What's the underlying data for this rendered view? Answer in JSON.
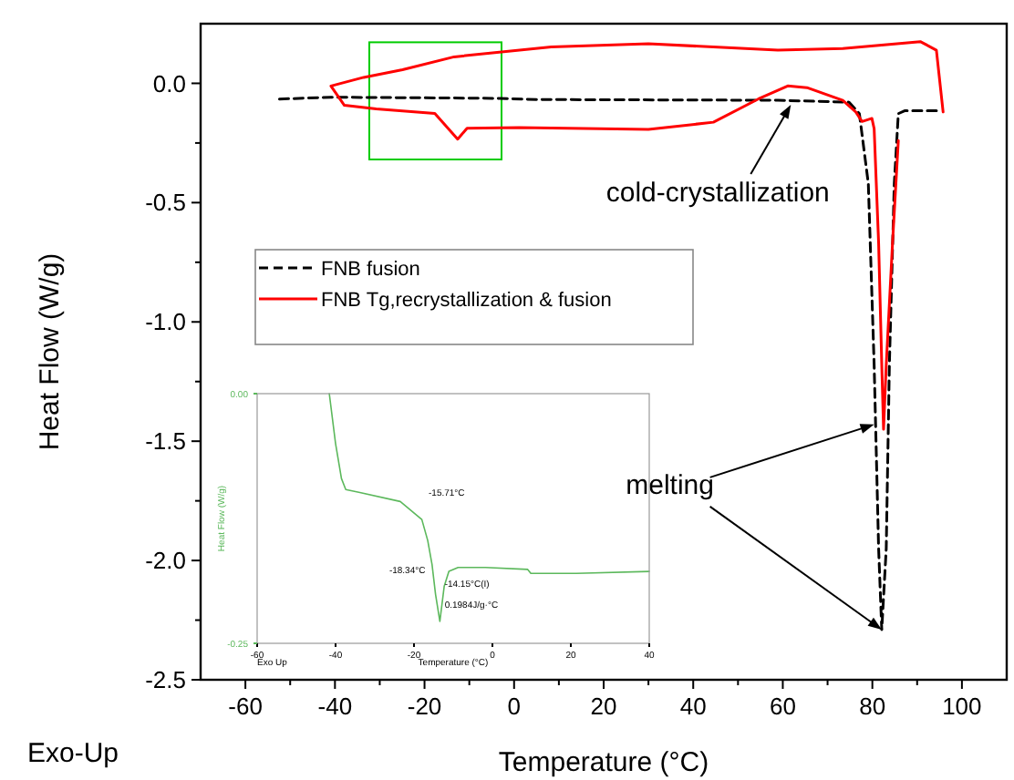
{
  "chart_data": [
    {
      "type": "line",
      "xlabel": "Temperature (°C)",
      "ylabel": "Heat Flow (W/g)",
      "xlim": [
        -70,
        110
      ],
      "ylim": [
        -2.5,
        0.25
      ],
      "xticks": [
        -60,
        {
          "value": -50,
          "label": null
        },
        -40,
        {
          "value": -30,
          "label": null
        },
        -20,
        {
          "value": -10,
          "label": null
        },
        0,
        {
          "value": 10,
          "label": null
        },
        20,
        {
          "value": 30,
          "label": null
        },
        40,
        {
          "value": 50,
          "label": null
        },
        60,
        {
          "value": 70,
          "label": null
        },
        80,
        {
          "value": 90,
          "label": null
        },
        100
      ],
      "yticks": [
        {
          "value": -2.5,
          "label": "-2.5"
        },
        {
          "value": -2.25,
          "label": null
        },
        {
          "value": -2,
          "label": "-2.0"
        },
        {
          "value": -1.75,
          "label": null
        },
        {
          "value": -1.5,
          "label": "-1.5"
        },
        {
          "value": -1.25,
          "label": null
        },
        {
          "value": -1,
          "label": "-1.0"
        },
        {
          "value": -0.75,
          "label": null
        },
        {
          "value": -0.5,
          "label": "-0.5"
        },
        {
          "value": -0.25,
          "label": null
        },
        {
          "value": 0,
          "label": "0.0"
        }
      ],
      "grid": false,
      "legend": "left",
      "series": [
        {
          "name": "FNB fusion",
          "color": "#000000",
          "line_style": "dashed",
          "x": [
            -52.4,
            -40.9,
            -3.2,
            5.4,
            58.9,
            74.8,
            77.1,
            79.1,
            80.4,
            81.4,
            82.1,
            83.1,
            83.8,
            84.9,
            85.8,
            87.2,
            94.6
          ],
          "values": [
            -0.066,
            -0.058,
            -0.063,
            -0.068,
            -0.071,
            -0.079,
            -0.127,
            -0.42,
            -1.18,
            -1.95,
            -2.29,
            -1.95,
            -1.18,
            -0.42,
            -0.127,
            -0.115,
            -0.115
          ]
        },
        {
          "name": "FNB  Tg,recrystallization & fusion",
          "color": "#ff0000",
          "line_style": "solid",
          "x": [
            95.8,
            94.3,
            90.7,
            73.4,
            58.9,
            30,
            8.3,
            -13.4,
            -24.9,
            -33.6,
            -40.9,
            -37.9,
            -30.8,
            -17.7,
            -12.6,
            -10.5,
            1.1,
            30,
            44.5,
            54.6,
            61.1,
            65.4,
            73.4,
            76.3,
            77.7,
            79.9,
            80.4,
            81.4,
            82.1,
            82.5,
            83.1,
            84.5,
            85.8
          ],
          "values": [
            -0.12,
            0.139,
            0.175,
            0.146,
            0.139,
            0.166,
            0.153,
            0.111,
            0.057,
            0.025,
            -0.011,
            -0.092,
            -0.107,
            -0.126,
            -0.234,
            -0.188,
            -0.185,
            -0.193,
            -0.163,
            -0.065,
            -0.011,
            -0.018,
            -0.071,
            -0.12,
            -0.16,
            -0.147,
            -0.19,
            -0.67,
            -1.18,
            -1.45,
            -1.18,
            -0.67,
            -0.24
          ]
        }
      ],
      "annotations": [
        {
          "text": "cold-crystallization",
          "x": 61.8,
          "y": -0.09
        },
        {
          "text": "melting",
          "x": 80.4,
          "y": -1.43
        },
        "Exo-Up"
      ]
    },
    {
      "type": "line",
      "xlabel": "Temperature (°C)",
      "ylabel": "Heat Flow (W/g)",
      "xlim": [
        -60,
        40
      ],
      "ylim": [
        -0.25,
        0
      ],
      "xticks": [
        -60,
        -40,
        -20,
        0,
        20,
        40
      ],
      "yticks": [
        {
          "value": -0.25,
          "label": "-0.25"
        },
        {
          "value": 0,
          "label": "0.00"
        }
      ],
      "grid": false,
      "series": [
        {
          "color": "#5cb85c",
          "line_style": "solid",
          "x": [
            -41.6,
            -40,
            -38.5,
            -37.4,
            -33.8,
            -23.5,
            -18,
            -16.5,
            -15.4,
            -14.5,
            -13.4,
            -12.3,
            -11.1,
            -8.75,
            -1.8,
            9,
            9.8,
            21.4,
            40
          ],
          "values": [
            0,
            -0.05,
            -0.085,
            -0.096,
            -0.099,
            -0.108,
            -0.126,
            -0.147,
            -0.171,
            -0.201,
            -0.228,
            -0.193,
            -0.178,
            -0.174,
            -0.174,
            -0.176,
            -0.18,
            -0.18,
            -0.178
          ]
        }
      ],
      "annotations": [
        "-15.71°C",
        {
          "text": "-18.34°C",
          "x": -15.7,
          "y": -0.178
        },
        {
          "text": "-14.15°C(I)",
          "x": -14.5,
          "y": -0.19
        },
        {
          "text": "0.1984J/g·°C",
          "x": -14.5,
          "y": -0.2
        },
        "Exo Up"
      ]
    }
  ]
}
